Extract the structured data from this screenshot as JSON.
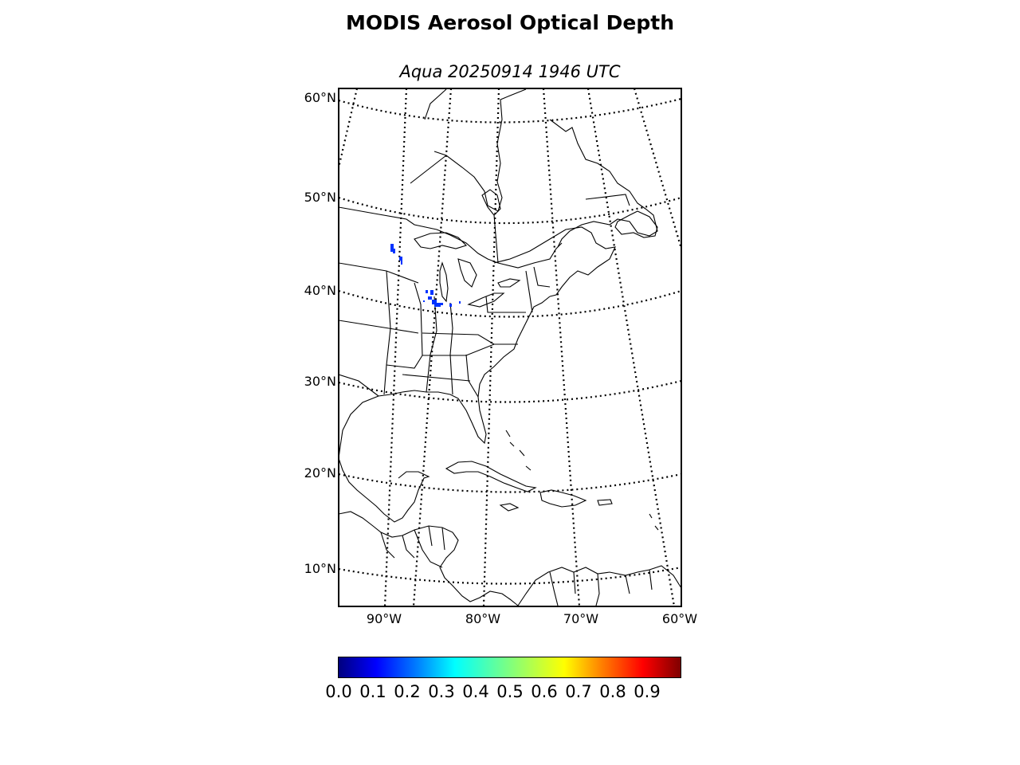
{
  "title": "MODIS Aerosol Optical Depth",
  "subtitle": "Aqua 20250914 1946 UTC",
  "map": {
    "projection": "conic",
    "lat_range": [
      6,
      62
    ],
    "lon_range": [
      -95,
      -60
    ],
    "lat_labels": [
      "60°N",
      "50°N",
      "40°N",
      "30°N",
      "20°N",
      "10°N"
    ],
    "lon_labels": [
      "90°W",
      "80°W",
      "70°W",
      "60°W"
    ],
    "graticule": "dotted",
    "coastline_color": "#000000",
    "aod_observation_color": "#0033ff"
  },
  "colorbar": {
    "colormap": "jet",
    "ticks": [
      "0.0",
      "0.1",
      "0.2",
      "0.3",
      "0.4",
      "0.5",
      "0.6",
      "0.7",
      "0.8",
      "0.9"
    ],
    "range": [
      0,
      1
    ]
  }
}
